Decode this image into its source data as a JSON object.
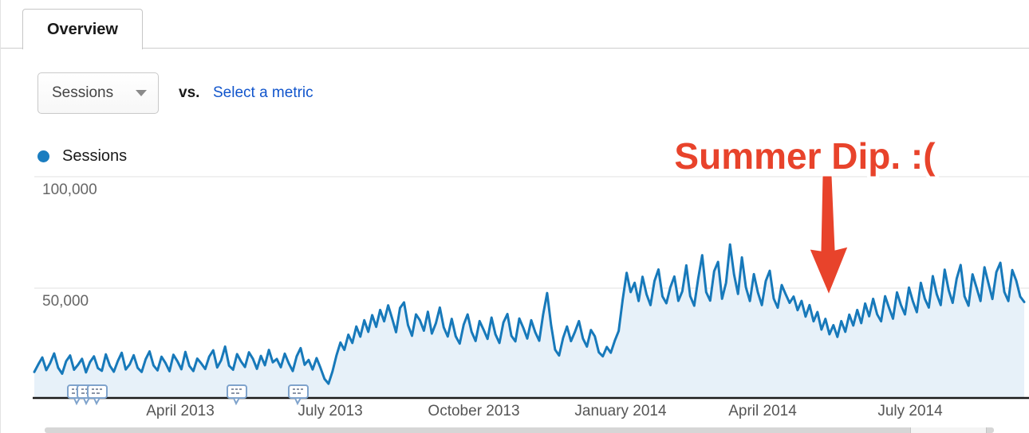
{
  "tab": {
    "label": "Overview"
  },
  "controls": {
    "metric_dropdown": {
      "value": "Sessions"
    },
    "vs_label": "vs.",
    "select_metric_label": "Select a metric"
  },
  "legend": {
    "series_label": "Sessions",
    "dot_color": "#1a7dc0"
  },
  "annotation": {
    "text": "Summer Dip. :(",
    "color": "#e8432b"
  },
  "annotation_markers": {
    "icon": "speech-bubble-icon",
    "x_positions": [
      96,
      108,
      121,
      296,
      373
    ]
  },
  "colors": {
    "line": "#1779ba",
    "area_fill": "#e7f1f9",
    "gridline": "#ececec",
    "axis": "#1a1a1a",
    "bubble_border": "#7fa3cc"
  },
  "chart_data": {
    "type": "area",
    "title": "",
    "xlabel": "",
    "ylabel": "Sessions",
    "ylim": [
      0,
      110000
    ],
    "grid": true,
    "legend_position": "top-left",
    "x_ticks": [
      "April 2013",
      "July 2013",
      "October 2013",
      "January 2014",
      "April 2014",
      "July 2014"
    ],
    "y_gridlines": [
      100000,
      50000
    ],
    "y_tick_labels": [
      "100,000",
      "50,000"
    ],
    "series": [
      {
        "name": "Sessions",
        "values": [
          12400,
          15800,
          18900,
          13200,
          16400,
          20700,
          14300,
          11600,
          17200,
          19800,
          13400,
          15600,
          18300,
          12200,
          16800,
          19400,
          14100,
          12900,
          20300,
          15200,
          12500,
          17300,
          21000,
          13500,
          15800,
          19900,
          14200,
          12400,
          18100,
          21600,
          15300,
          13100,
          19200,
          16400,
          12700,
          20100,
          17200,
          13600,
          21400,
          15100,
          12800,
          18400,
          16200,
          13700,
          19300,
          22100,
          14400,
          17600,
          23800,
          15200,
          13400,
          20400,
          17100,
          14600,
          21200,
          18300,
          13800,
          19600,
          15400,
          22300,
          16700,
          18200,
          14500,
          20600,
          16300,
          12800,
          19400,
          23100,
          15600,
          17800,
          13500,
          18600,
          14200,
          9300,
          7100,
          12600,
          19800,
          25600,
          22300,
          29100,
          25400,
          32800,
          28200,
          35600,
          30400,
          37900,
          32600,
          40200,
          35100,
          42300,
          36400,
          30200,
          41100,
          43600,
          33400,
          28600,
          38200,
          35600,
          30900,
          39400,
          29600,
          34200,
          41300,
          32400,
          28300,
          36200,
          28400,
          25100,
          33600,
          38200,
          30400,
          26300,
          35200,
          31400,
          27200,
          36800,
          29300,
          25400,
          34600,
          38400,
          28600,
          26100,
          36400,
          32200,
          27400,
          35600,
          30200,
          26400,
          38200,
          47800,
          33400,
          22400,
          19800,
          27600,
          32800,
          26200,
          30400,
          35200,
          27400,
          23800,
          31200,
          28400,
          21200,
          19400,
          23600,
          21000,
          26400,
          30800,
          44800,
          56900,
          48200,
          52400,
          44200,
          55100,
          47300,
          42400,
          53200,
          58400,
          46300,
          43200,
          50400,
          55200,
          44300,
          48600,
          60200,
          46400,
          42100,
          54300,
          64800,
          48200,
          44400,
          57600,
          61800,
          45200,
          52400,
          69600,
          56200,
          47400,
          63800,
          50400,
          44200,
          56300,
          48100,
          42400,
          53200,
          57800,
          45300,
          41200,
          51400,
          47200,
          43400,
          46200,
          40100,
          44300,
          37200,
          42400,
          35100,
          39300,
          31400,
          36200,
          29300,
          33400,
          28100,
          35200,
          30400,
          38100,
          33200,
          40200,
          34300,
          43100,
          37400,
          45200,
          38300,
          35100,
          46400,
          41200,
          36300,
          48100,
          42400,
          38200,
          50300,
          44100,
          39200,
          52400,
          45200,
          41300,
          55400,
          47200,
          42400,
          58300,
          49100,
          43400,
          54200,
          60400,
          46300,
          42100,
          56200,
          50300,
          44200,
          59400,
          52300,
          45100,
          57200,
          61400,
          48300,
          44200,
          58100,
          53400,
          46200,
          43800
        ]
      }
    ]
  }
}
